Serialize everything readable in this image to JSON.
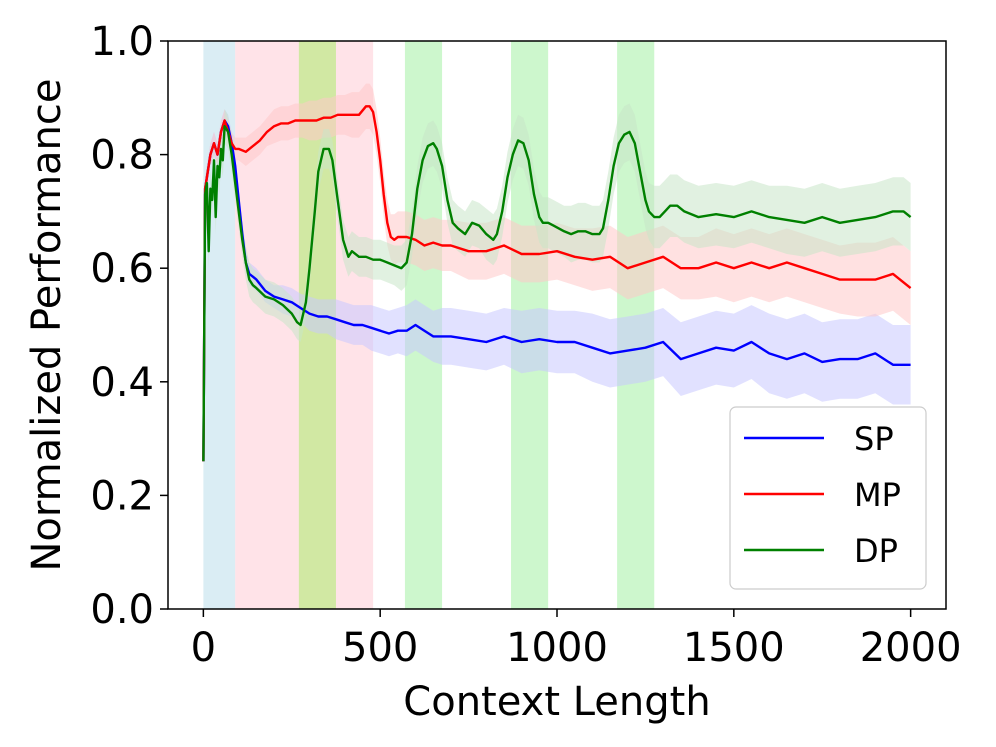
{
  "chart_data": {
    "type": "line",
    "title": "",
    "xlabel": "Context Length",
    "ylabel": "Normalized Performance",
    "xlim": [
      -100,
      2100
    ],
    "ylim": [
      0.0,
      1.0
    ],
    "xticks": [
      0,
      500,
      1000,
      1500,
      2000
    ],
    "yticks": [
      0.0,
      0.2,
      0.4,
      0.6,
      0.8,
      1.0
    ],
    "xtick_labels": [
      "0",
      "500",
      "1000",
      "1500",
      "2000"
    ],
    "ytick_labels": [
      "0.0",
      "0.2",
      "0.4",
      "0.6",
      "0.8",
      "1.0"
    ],
    "grid": false,
    "legend_position": "bottom-right",
    "shaded_regions": [
      {
        "x0": 0,
        "x1": 90,
        "color": "#add8e6"
      },
      {
        "x0": 90,
        "x1": 270,
        "color": "#ffc0cb"
      },
      {
        "x0": 270,
        "x1": 375,
        "color": "#9acd32"
      },
      {
        "x0": 375,
        "x1": 480,
        "color": "#ffc0cb"
      },
      {
        "x0": 570,
        "x1": 675,
        "color": "#90ee90"
      },
      {
        "x0": 870,
        "x1": 975,
        "color": "#90ee90"
      },
      {
        "x0": 1170,
        "x1": 1275,
        "color": "#90ee90"
      }
    ],
    "series": [
      {
        "name": "SP",
        "color": "#0000ff",
        "band_color": "#c8c8ff",
        "x": [
          0,
          5,
          10,
          20,
          30,
          40,
          50,
          60,
          70,
          80,
          90,
          100,
          110,
          120,
          130,
          140,
          150,
          175,
          200,
          225,
          250,
          275,
          300,
          325,
          350,
          375,
          400,
          425,
          450,
          475,
          500,
          525,
          550,
          575,
          600,
          625,
          650,
          675,
          700,
          750,
          800,
          850,
          900,
          950,
          1000,
          1050,
          1100,
          1150,
          1200,
          1250,
          1300,
          1350,
          1400,
          1450,
          1500,
          1550,
          1600,
          1650,
          1700,
          1750,
          1800,
          1850,
          1900,
          1950,
          2000
        ],
        "y": [
          0.26,
          0.74,
          0.76,
          0.8,
          0.82,
          0.8,
          0.84,
          0.86,
          0.85,
          0.82,
          0.78,
          0.72,
          0.66,
          0.61,
          0.59,
          0.585,
          0.58,
          0.56,
          0.55,
          0.545,
          0.54,
          0.53,
          0.52,
          0.515,
          0.515,
          0.51,
          0.505,
          0.5,
          0.5,
          0.495,
          0.49,
          0.485,
          0.49,
          0.49,
          0.5,
          0.49,
          0.48,
          0.48,
          0.48,
          0.475,
          0.47,
          0.48,
          0.47,
          0.475,
          0.47,
          0.47,
          0.46,
          0.45,
          0.455,
          0.46,
          0.47,
          0.44,
          0.45,
          0.46,
          0.455,
          0.47,
          0.45,
          0.44,
          0.45,
          0.435,
          0.44,
          0.44,
          0.45,
          0.43,
          0.43
        ],
        "band_width": [
          0.0,
          0.02,
          0.02,
          0.02,
          0.02,
          0.02,
          0.02,
          0.02,
          0.02,
          0.02,
          0.02,
          0.02,
          0.02,
          0.02,
          0.02,
          0.02,
          0.02,
          0.02,
          0.02,
          0.025,
          0.025,
          0.025,
          0.03,
          0.03,
          0.03,
          0.035,
          0.035,
          0.035,
          0.035,
          0.04,
          0.04,
          0.04,
          0.04,
          0.045,
          0.045,
          0.045,
          0.045,
          0.05,
          0.05,
          0.05,
          0.05,
          0.05,
          0.055,
          0.055,
          0.055,
          0.055,
          0.06,
          0.06,
          0.06,
          0.06,
          0.06,
          0.065,
          0.065,
          0.065,
          0.065,
          0.065,
          0.07,
          0.07,
          0.07,
          0.07,
          0.07,
          0.07,
          0.07,
          0.07,
          0.07
        ]
      },
      {
        "name": "MP",
        "color": "#ff0000",
        "band_color": "#ffc8c8",
        "x": [
          0,
          5,
          10,
          20,
          30,
          40,
          50,
          60,
          70,
          80,
          90,
          100,
          120,
          140,
          160,
          180,
          200,
          220,
          240,
          260,
          280,
          300,
          320,
          340,
          360,
          380,
          400,
          420,
          440,
          460,
          470,
          480,
          490,
          500,
          510,
          520,
          530,
          540,
          550,
          575,
          600,
          625,
          650,
          675,
          700,
          750,
          800,
          850,
          900,
          950,
          1000,
          1050,
          1100,
          1150,
          1200,
          1250,
          1300,
          1350,
          1400,
          1450,
          1500,
          1550,
          1600,
          1650,
          1700,
          1750,
          1800,
          1850,
          1900,
          1950,
          2000
        ],
        "y": [
          0.26,
          0.74,
          0.76,
          0.8,
          0.82,
          0.8,
          0.84,
          0.86,
          0.84,
          0.82,
          0.81,
          0.81,
          0.805,
          0.815,
          0.825,
          0.84,
          0.85,
          0.855,
          0.855,
          0.86,
          0.86,
          0.86,
          0.86,
          0.865,
          0.865,
          0.87,
          0.87,
          0.87,
          0.87,
          0.885,
          0.885,
          0.875,
          0.84,
          0.79,
          0.73,
          0.68,
          0.655,
          0.65,
          0.655,
          0.655,
          0.65,
          0.64,
          0.645,
          0.64,
          0.64,
          0.63,
          0.63,
          0.64,
          0.625,
          0.625,
          0.63,
          0.62,
          0.615,
          0.62,
          0.6,
          0.61,
          0.62,
          0.6,
          0.6,
          0.61,
          0.6,
          0.61,
          0.6,
          0.61,
          0.6,
          0.59,
          0.58,
          0.58,
          0.58,
          0.59,
          0.565
        ],
        "band_width": [
          0.0,
          0.02,
          0.02,
          0.02,
          0.02,
          0.02,
          0.02,
          0.02,
          0.02,
          0.02,
          0.02,
          0.02,
          0.025,
          0.025,
          0.025,
          0.025,
          0.03,
          0.03,
          0.03,
          0.03,
          0.03,
          0.035,
          0.035,
          0.035,
          0.035,
          0.035,
          0.035,
          0.04,
          0.04,
          0.04,
          0.04,
          0.04,
          0.04,
          0.04,
          0.04,
          0.04,
          0.04,
          0.045,
          0.045,
          0.045,
          0.045,
          0.045,
          0.045,
          0.045,
          0.045,
          0.05,
          0.05,
          0.05,
          0.05,
          0.05,
          0.05,
          0.05,
          0.055,
          0.055,
          0.055,
          0.055,
          0.055,
          0.055,
          0.055,
          0.06,
          0.06,
          0.06,
          0.06,
          0.06,
          0.06,
          0.06,
          0.06,
          0.065,
          0.065,
          0.065,
          0.065
        ]
      },
      {
        "name": "DP",
        "color": "#008000",
        "band_color": "#c8e6c8",
        "x": [
          0,
          5,
          10,
          15,
          20,
          25,
          30,
          35,
          40,
          45,
          50,
          55,
          60,
          70,
          80,
          90,
          100,
          110,
          120,
          130,
          140,
          150,
          175,
          200,
          225,
          250,
          265,
          275,
          290,
          300,
          315,
          325,
          340,
          355,
          365,
          380,
          395,
          410,
          420,
          440,
          460,
          480,
          500,
          520,
          540,
          560,
          575,
          590,
          605,
          620,
          635,
          650,
          660,
          675,
          690,
          705,
          720,
          740,
          760,
          780,
          800,
          820,
          830,
          845,
          860,
          875,
          890,
          905,
          920,
          935,
          950,
          960,
          975,
          990,
          1005,
          1020,
          1040,
          1060,
          1080,
          1100,
          1120,
          1130,
          1145,
          1160,
          1175,
          1190,
          1205,
          1220,
          1235,
          1250,
          1260,
          1275,
          1290,
          1305,
          1320,
          1340,
          1360,
          1400,
          1450,
          1500,
          1550,
          1600,
          1650,
          1700,
          1750,
          1800,
          1850,
          1900,
          1950,
          1980,
          2000
        ],
        "y": [
          0.26,
          0.73,
          0.75,
          0.63,
          0.74,
          0.72,
          0.79,
          0.69,
          0.78,
          0.76,
          0.81,
          0.79,
          0.85,
          0.84,
          0.8,
          0.75,
          0.7,
          0.65,
          0.61,
          0.58,
          0.57,
          0.565,
          0.55,
          0.545,
          0.535,
          0.52,
          0.505,
          0.5,
          0.54,
          0.6,
          0.7,
          0.77,
          0.81,
          0.81,
          0.79,
          0.72,
          0.65,
          0.62,
          0.63,
          0.62,
          0.62,
          0.615,
          0.615,
          0.61,
          0.605,
          0.6,
          0.61,
          0.66,
          0.74,
          0.79,
          0.815,
          0.82,
          0.81,
          0.78,
          0.72,
          0.68,
          0.67,
          0.66,
          0.68,
          0.675,
          0.66,
          0.65,
          0.66,
          0.7,
          0.76,
          0.8,
          0.825,
          0.82,
          0.79,
          0.73,
          0.69,
          0.68,
          0.68,
          0.675,
          0.67,
          0.665,
          0.66,
          0.665,
          0.665,
          0.66,
          0.66,
          0.67,
          0.72,
          0.78,
          0.82,
          0.835,
          0.84,
          0.82,
          0.77,
          0.72,
          0.7,
          0.69,
          0.69,
          0.7,
          0.71,
          0.71,
          0.7,
          0.69,
          0.695,
          0.69,
          0.7,
          0.69,
          0.685,
          0.68,
          0.69,
          0.68,
          0.685,
          0.69,
          0.7,
          0.7,
          0.69
        ],
        "band_width": [
          0.0,
          0.03,
          0.03,
          0.03,
          0.03,
          0.03,
          0.03,
          0.03,
          0.03,
          0.03,
          0.03,
          0.03,
          0.03,
          0.03,
          0.03,
          0.03,
          0.03,
          0.03,
          0.03,
          0.03,
          0.03,
          0.03,
          0.03,
          0.03,
          0.03,
          0.03,
          0.03,
          0.03,
          0.03,
          0.03,
          0.035,
          0.035,
          0.035,
          0.035,
          0.035,
          0.035,
          0.035,
          0.035,
          0.035,
          0.035,
          0.035,
          0.035,
          0.035,
          0.035,
          0.035,
          0.04,
          0.04,
          0.04,
          0.04,
          0.04,
          0.04,
          0.04,
          0.04,
          0.04,
          0.04,
          0.04,
          0.04,
          0.04,
          0.04,
          0.04,
          0.045,
          0.045,
          0.045,
          0.045,
          0.045,
          0.045,
          0.045,
          0.045,
          0.045,
          0.045,
          0.045,
          0.045,
          0.045,
          0.045,
          0.045,
          0.045,
          0.05,
          0.05,
          0.05,
          0.05,
          0.05,
          0.05,
          0.05,
          0.05,
          0.05,
          0.05,
          0.05,
          0.05,
          0.05,
          0.05,
          0.05,
          0.055,
          0.055,
          0.055,
          0.055,
          0.055,
          0.055,
          0.055,
          0.055,
          0.055,
          0.055,
          0.055,
          0.06,
          0.06,
          0.06,
          0.06,
          0.06,
          0.06,
          0.06,
          0.06,
          0.06
        ]
      }
    ]
  }
}
